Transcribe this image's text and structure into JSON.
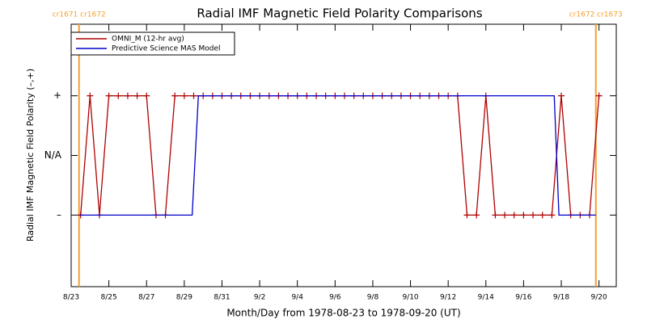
{
  "chart_data": {
    "type": "line",
    "title": "Radial IMF Magnetic Field Polarity Comparisons",
    "x_label": "Month/Day from 1978-08-23 to 1978-09-20 (UT)",
    "y_label": "Radial IMF Magnetic Field Polarity (–,+)",
    "xlim": [
      "1978-08-23T00:00",
      "1978-09-20T22:00"
    ],
    "xticks": [
      {
        "value": "1978-08-23T00:00",
        "label": "8/23"
      },
      {
        "value": "1978-08-25T00:00",
        "label": "8/25"
      },
      {
        "value": "1978-08-27T00:00",
        "label": "8/27"
      },
      {
        "value": "1978-08-29T00:00",
        "label": "8/29"
      },
      {
        "value": "1978-08-31T00:00",
        "label": "8/31"
      },
      {
        "value": "1978-09-02T00:00",
        "label": "9/2"
      },
      {
        "value": "1978-09-04T00:00",
        "label": "9/4"
      },
      {
        "value": "1978-09-06T00:00",
        "label": "9/6"
      },
      {
        "value": "1978-09-08T00:00",
        "label": "9/8"
      },
      {
        "value": "1978-09-10T00:00",
        "label": "9/10"
      },
      {
        "value": "1978-09-12T00:00",
        "label": "9/12"
      },
      {
        "value": "1978-09-14T00:00",
        "label": "9/14"
      },
      {
        "value": "1978-09-16T00:00",
        "label": "9/16"
      },
      {
        "value": "1978-09-18T00:00",
        "label": "9/18"
      },
      {
        "value": "1978-09-20T00:00",
        "label": "9/20"
      }
    ],
    "ylim": [
      -2.2,
      2.2
    ],
    "yticks": [
      {
        "value": 1,
        "label": "+"
      },
      {
        "value": 0,
        "label": "N/A"
      },
      {
        "value": -1,
        "label": "–"
      }
    ],
    "vlines": [
      {
        "x": "1978-08-23T10:00",
        "label": "cr1671 cr1672",
        "color": "#f5a030"
      },
      {
        "x": "1978-09-19T20:00",
        "label": "cr1672 cr1673",
        "color": "#f5a030"
      }
    ],
    "legend": "upper left",
    "series": [
      {
        "name": "OMNI_M (12-hr avg)",
        "color": "#b00000",
        "markers": true,
        "x": [
          "1978-08-23T12:00",
          "1978-08-24T00:00",
          "1978-08-24T12:00",
          "1978-08-25T00:00",
          "1978-08-25T12:00",
          "1978-08-26T00:00",
          "1978-08-26T12:00",
          "1978-08-27T00:00",
          "1978-08-27T12:00",
          "1978-08-28T00:00",
          "1978-08-28T12:00",
          "1978-08-29T00:00",
          "1978-08-29T12:00",
          "1978-08-30T00:00",
          "1978-08-30T12:00",
          "1978-08-31T00:00",
          "1978-08-31T12:00",
          "1978-09-01T00:00",
          "1978-09-01T12:00",
          "1978-09-02T00:00",
          "1978-09-02T12:00",
          "1978-09-03T00:00",
          "1978-09-03T12:00",
          "1978-09-04T00:00",
          "1978-09-04T12:00",
          "1978-09-05T00:00",
          "1978-09-05T12:00",
          "1978-09-06T00:00",
          "1978-09-06T12:00",
          "1978-09-07T00:00",
          "1978-09-07T12:00",
          "1978-09-08T00:00",
          "1978-09-08T12:00",
          "1978-09-09T00:00",
          "1978-09-09T12:00",
          "1978-09-10T00:00",
          "1978-09-10T12:00",
          "1978-09-11T00:00",
          "1978-09-11T12:00",
          "1978-09-12T00:00",
          "1978-09-12T12:00",
          "1978-09-13T00:00",
          "1978-09-13T12:00",
          "1978-09-14T00:00",
          "1978-09-14T12:00",
          "1978-09-15T00:00",
          "1978-09-15T12:00",
          "1978-09-16T00:00",
          "1978-09-16T12:00",
          "1978-09-17T00:00",
          "1978-09-17T12:00",
          "1978-09-18T00:00",
          "1978-09-18T12:00",
          "1978-09-19T00:00",
          "1978-09-19T12:00",
          "1978-09-20T00:00"
        ],
        "values": [
          -1,
          1,
          -1,
          1,
          1,
          1,
          1,
          1,
          -1,
          -1,
          1,
          1,
          1,
          1,
          1,
          1,
          1,
          1,
          1,
          1,
          1,
          1,
          1,
          1,
          1,
          1,
          1,
          1,
          1,
          1,
          1,
          1,
          1,
          1,
          1,
          1,
          1,
          1,
          1,
          1,
          1,
          -1,
          -1,
          1,
          -1,
          -1,
          -1,
          -1,
          -1,
          -1,
          -1,
          1,
          -1,
          -1,
          -1,
          1
        ]
      },
      {
        "name": "Predictive Science MAS Model",
        "color": "#0000cc",
        "markers": false,
        "x": [
          "1978-08-23T10:00",
          "1978-08-29T10:00",
          "1978-08-29T18:00",
          "1978-09-17T15:00",
          "1978-09-17T21:00",
          "1978-09-19T20:00"
        ],
        "values": [
          -1,
          -1,
          1,
          1,
          -1,
          -1
        ]
      }
    ]
  }
}
